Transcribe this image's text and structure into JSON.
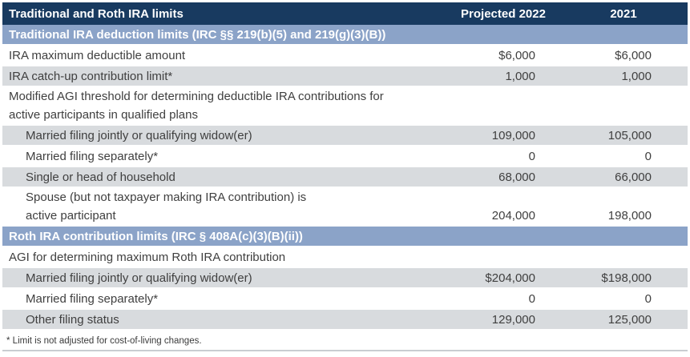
{
  "colors": {
    "navy": "#183A60",
    "steel": "#8BA3C8",
    "shade": "#D8DBDE"
  },
  "header": {
    "title": "Traditional and Roth IRA limits",
    "col_2022": "Projected 2022",
    "col_2021": "2021"
  },
  "rows": [
    {
      "type": "section",
      "label": "Traditional IRA deduction limits (IRC §§ 219(b)(5) and 219(g)(3)(B))"
    },
    {
      "type": "data",
      "label": "IRA maximum deductible amount",
      "v2022": "$6,000",
      "v2021": "$6,000",
      "indent": false,
      "shaded": false
    },
    {
      "type": "data",
      "label": "IRA catch-up contribution limit*",
      "v2022": "1,000",
      "v2021": "1,000",
      "indent": false,
      "shaded": true
    },
    {
      "type": "data",
      "label": "Modified AGI threshold for determining deductible IRA contributions for\nactive participants in qualified plans",
      "v2022": "",
      "v2021": "",
      "indent": false,
      "shaded": false
    },
    {
      "type": "data",
      "label": "Married filing jointly or qualifying widow(er)",
      "v2022": "109,000",
      "v2021": "105,000",
      "indent": true,
      "shaded": true
    },
    {
      "type": "data",
      "label": "Married filing separately*",
      "v2022": "0",
      "v2021": "0",
      "indent": true,
      "shaded": false
    },
    {
      "type": "data",
      "label": "Single or head of household",
      "v2022": "68,000",
      "v2021": "66,000",
      "indent": true,
      "shaded": true
    },
    {
      "type": "data",
      "label": "Spouse (but not taxpayer making IRA contribution) is\nactive participant",
      "v2022": "204,000",
      "v2021": "198,000",
      "indent": true,
      "shaded": false
    },
    {
      "type": "section",
      "label": "Roth IRA contribution limits (IRC § 408A(c)(3)(B)(ii))"
    },
    {
      "type": "data",
      "label": "AGI for determining maximum Roth IRA contribution",
      "v2022": "",
      "v2021": "",
      "indent": false,
      "shaded": false
    },
    {
      "type": "data",
      "label": "Married filing jointly or qualifying widow(er)",
      "v2022": "$204,000",
      "v2021": "$198,000",
      "indent": true,
      "shaded": true
    },
    {
      "type": "data",
      "label": "Married filing separately*",
      "v2022": "0",
      "v2021": "0",
      "indent": true,
      "shaded": false
    },
    {
      "type": "data",
      "label": "Other filing status",
      "v2022": "129,000",
      "v2021": "125,000",
      "indent": true,
      "shaded": true
    }
  ],
  "footnote": "* Limit is not adjusted for cost-of-living changes."
}
